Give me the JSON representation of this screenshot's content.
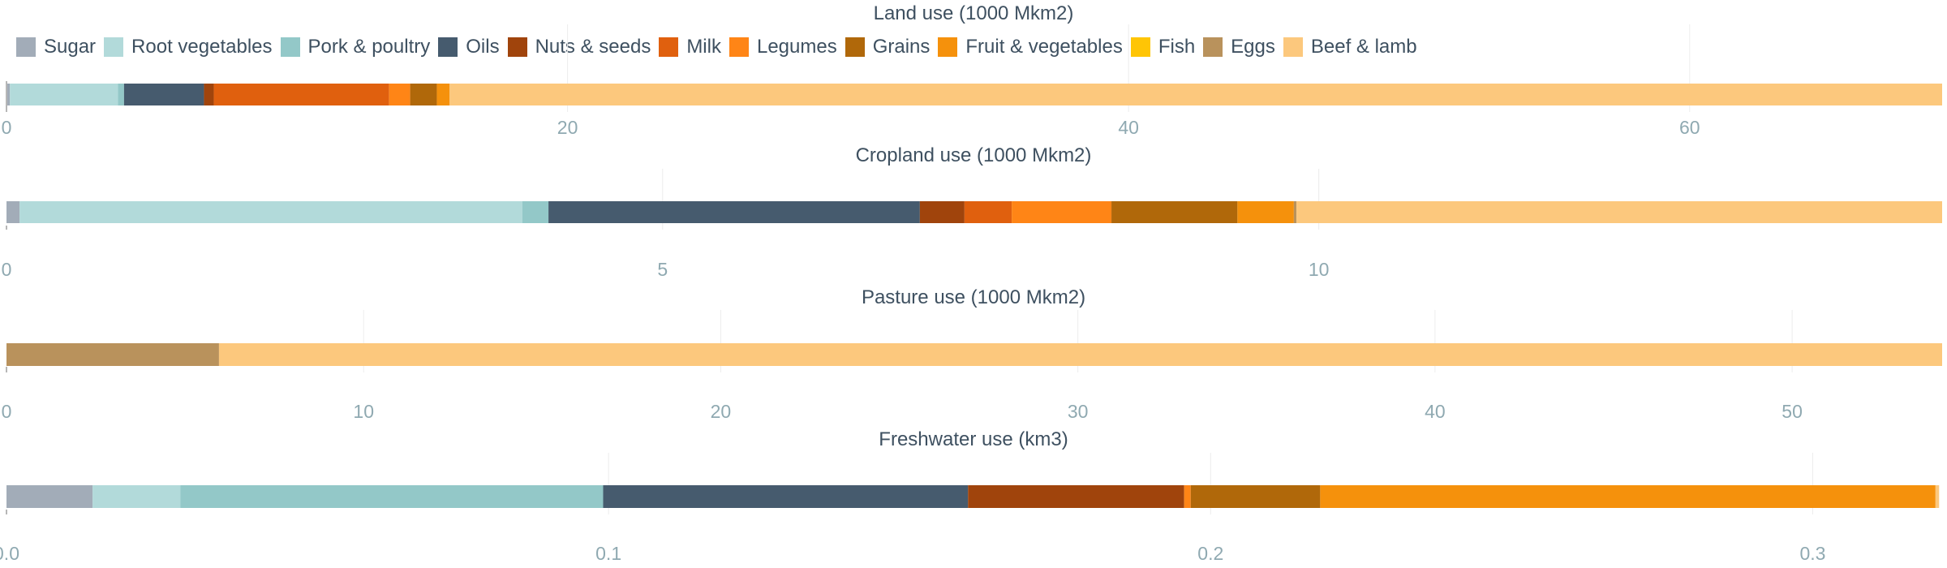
{
  "legend": [
    {
      "name": "Sugar",
      "color": "#a2acb8"
    },
    {
      "name": "Root vegetables",
      "color": "#b2dada"
    },
    {
      "name": "Pork & poultry",
      "color": "#93c8c8"
    },
    {
      "name": "Oils",
      "color": "#465b6e"
    },
    {
      "name": "Nuts & seeds",
      "color": "#a0440c"
    },
    {
      "name": "Milk",
      "color": "#e0600e"
    },
    {
      "name": "Legumes",
      "color": "#ff8516"
    },
    {
      "name": "Grains",
      "color": "#b0680a"
    },
    {
      "name": "Fruit & vegetables",
      "color": "#f5910c"
    },
    {
      "name": "Fish",
      "color": "#ffc505"
    },
    {
      "name": "Eggs",
      "color": "#b9925c"
    },
    {
      "name": "Beef & lamb",
      "color": "#fcc87d"
    }
  ],
  "chart_data": [
    {
      "type": "bar",
      "orientation": "horizontal-stacked",
      "title": "Land use (1000 Mkm2)",
      "xlim": [
        0,
        69
      ],
      "ticks": [
        {
          "v": 0,
          "t": "0"
        },
        {
          "v": 20,
          "t": "20"
        },
        {
          "v": 40,
          "t": "40"
        },
        {
          "v": 60,
          "t": "60"
        }
      ],
      "segments": [
        {
          "name": "Sugar",
          "value": 0.12
        },
        {
          "name": "Root vegetables",
          "value": 3.85
        },
        {
          "name": "Pork & poultry",
          "value": 0.22
        },
        {
          "name": "Oils",
          "value": 2.85
        },
        {
          "name": "Nuts & seeds",
          "value": 0.35
        },
        {
          "name": "Milk",
          "value": 6.25
        },
        {
          "name": "Legumes",
          "value": 0.75
        },
        {
          "name": "Grains",
          "value": 0.95
        },
        {
          "name": "Fruit & vegetables",
          "value": 0.45
        },
        {
          "name": "Fish",
          "value": 0.0
        },
        {
          "name": "Eggs",
          "value": 0.0
        },
        {
          "name": "Beef & lamb",
          "value": 53.21
        }
      ]
    },
    {
      "type": "bar",
      "orientation": "horizontal-stacked",
      "title": "Cropland use (1000 Mkm2)",
      "xlim": [
        0,
        14.75
      ],
      "ticks": [
        {
          "v": 0,
          "t": "0"
        },
        {
          "v": 5,
          "t": "5"
        },
        {
          "v": 10,
          "t": "10"
        }
      ],
      "segments": [
        {
          "name": "Sugar",
          "value": 0.1
        },
        {
          "name": "Root vegetables",
          "value": 3.83
        },
        {
          "name": "Pork & poultry",
          "value": 0.2
        },
        {
          "name": "Oils",
          "value": 2.83
        },
        {
          "name": "Nuts & seeds",
          "value": 0.34
        },
        {
          "name": "Milk",
          "value": 0.36
        },
        {
          "name": "Legumes",
          "value": 0.76
        },
        {
          "name": "Grains",
          "value": 0.96
        },
        {
          "name": "Fruit & vegetables",
          "value": 0.43
        },
        {
          "name": "Fish",
          "value": 0.0
        },
        {
          "name": "Eggs",
          "value": 0.02
        },
        {
          "name": "Beef & lamb",
          "value": 4.92
        }
      ]
    },
    {
      "type": "bar",
      "orientation": "horizontal-stacked",
      "title": "Pasture use (1000 Mkm2)",
      "xlim": [
        0,
        54.2
      ],
      "ticks": [
        {
          "v": 0,
          "t": "0"
        },
        {
          "v": 10,
          "t": "10"
        },
        {
          "v": 20,
          "t": "20"
        },
        {
          "v": 30,
          "t": "30"
        },
        {
          "v": 40,
          "t": "40"
        },
        {
          "v": 50,
          "t": "50"
        }
      ],
      "segments": [
        {
          "name": "Sugar",
          "value": 0.0
        },
        {
          "name": "Root vegetables",
          "value": 0.0
        },
        {
          "name": "Pork & poultry",
          "value": 0.0
        },
        {
          "name": "Oils",
          "value": 0.0
        },
        {
          "name": "Nuts & seeds",
          "value": 0.0
        },
        {
          "name": "Milk",
          "value": 0.0
        },
        {
          "name": "Legumes",
          "value": 0.0
        },
        {
          "name": "Grains",
          "value": 0.0
        },
        {
          "name": "Fruit & vegetables",
          "value": 0.0
        },
        {
          "name": "Fish",
          "value": 0.0
        },
        {
          "name": "Eggs",
          "value": 5.95
        },
        {
          "name": "Beef & lamb",
          "value": 48.25
        }
      ]
    },
    {
      "type": "bar",
      "orientation": "horizontal-stacked",
      "title": "Freshwater use (km3)",
      "xlim": [
        0,
        0.3215
      ],
      "ticks": [
        {
          "v": 0,
          "t": "0.0"
        },
        {
          "v": 0.1,
          "t": "0.1"
        },
        {
          "v": 0.2,
          "t": "0.2"
        },
        {
          "v": 0.3,
          "t": "0.3"
        }
      ],
      "segments": [
        {
          "name": "Sugar",
          "value": 0.0143
        },
        {
          "name": "Root vegetables",
          "value": 0.0146
        },
        {
          "name": "Pork & poultry",
          "value": 0.0702
        },
        {
          "name": "Oils",
          "value": 0.0606
        },
        {
          "name": "Nuts & seeds",
          "value": 0.0359
        },
        {
          "name": "Milk",
          "value": 0.0
        },
        {
          "name": "Legumes",
          "value": 0.0011
        },
        {
          "name": "Grains",
          "value": 0.0215
        },
        {
          "name": "Fruit & vegetables",
          "value": 0.1022
        },
        {
          "name": "Fish",
          "value": 0.0
        },
        {
          "name": "Eggs",
          "value": 0.0
        },
        {
          "name": "Beef & lamb",
          "value": 0.0006
        }
      ]
    }
  ]
}
